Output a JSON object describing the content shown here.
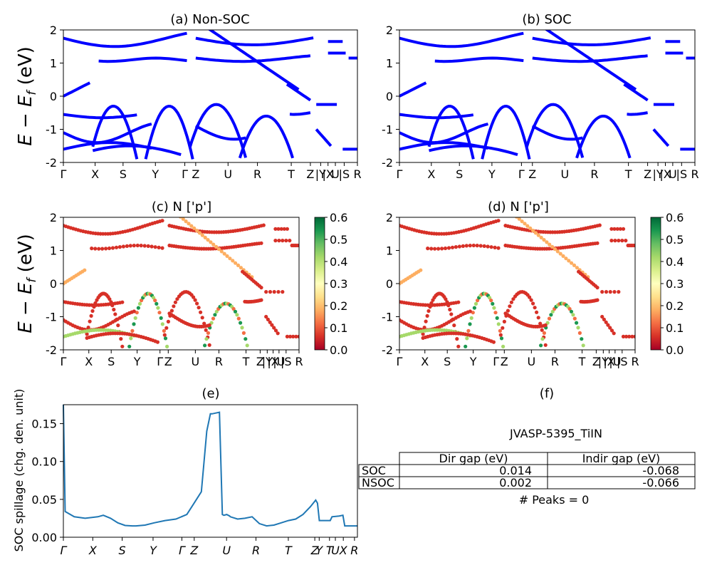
{
  "colors": {
    "band": "#0000ff",
    "spillage": "#1f77b4"
  },
  "axes_common": {
    "ylabel": "E − E_f (eV)",
    "yticks": [
      2,
      1,
      0,
      -1,
      -2
    ],
    "kpath_labels": [
      "Γ",
      "X",
      "S",
      "Y",
      "Γ",
      "Z",
      "U",
      "R",
      "T",
      "Z",
      "|Y",
      "|X",
      "U",
      "|S",
      "R"
    ],
    "kpath_labels_small": [
      "Γ",
      "X",
      "S",
      "Y",
      "Γ",
      "Z",
      "U",
      "R",
      "T",
      "Z",
      "|Y",
      "|X",
      "|U",
      "|S",
      "R"
    ],
    "colorbar_ticks": [
      "0.6",
      "0.5",
      "0.4",
      "0.3",
      "0.2",
      "0.1",
      "0.0"
    ]
  },
  "chart_data": [
    {
      "panel": "a",
      "type": "line",
      "title": "(a) Non-SOC",
      "ylim": [
        -2,
        2
      ],
      "series_color": "#0000ff"
    },
    {
      "panel": "b",
      "type": "line",
      "title": "(b) SOC",
      "ylim": [
        -2,
        2
      ],
      "series_color": "#0000ff"
    },
    {
      "panel": "c",
      "type": "scatter",
      "title": "(c)  N ['p']",
      "ylim": [
        -2,
        2
      ],
      "colorbar": [
        0.0,
        0.6
      ],
      "colormap": "RdYlGn"
    },
    {
      "panel": "d",
      "type": "scatter",
      "title": "(d) N ['p']",
      "ylim": [
        -2,
        2
      ],
      "colorbar": [
        0.0,
        0.6
      ],
      "colormap": "RdYlGn"
    },
    {
      "panel": "e",
      "type": "line",
      "title": "(e)",
      "ylabel": "SOC spillage (chg. den. unit)",
      "ylim": [
        0,
        0.175
      ],
      "yticks": [
        "0.15",
        "0.10",
        "0.05",
        "0.00"
      ],
      "xticks": [
        "Γ",
        "X",
        "S",
        "Y",
        "Γ",
        "Z",
        "U",
        "R",
        "T",
        "Z",
        "Y",
        "T",
        "U",
        "X",
        "S",
        "R"
      ],
      "x": [
        0,
        0.05,
        0.3,
        0.6,
        0.95,
        1.1,
        1.3,
        1.5,
        1.7,
        1.9,
        2.0,
        2.25,
        2.5,
        2.8,
        3.1,
        3.4,
        3.6,
        3.8,
        3.95,
        4.05,
        4.1,
        4.2,
        4.3,
        4.38,
        4.42,
        4.5,
        4.58,
        4.6,
        4.8,
        5.0,
        5.2,
        5.4,
        5.6,
        5.8,
        6.0,
        6.2,
        6.4,
        6.6,
        6.8,
        6.95,
        7.0,
        7.05,
        7.35,
        7.4,
        7.6,
        7.7,
        7.75,
        8.1
      ],
      "y": [
        0.175,
        0.034,
        0.027,
        0.025,
        0.027,
        0.029,
        0.025,
        0.019,
        0.0155,
        0.015,
        0.015,
        0.016,
        0.019,
        0.022,
        0.024,
        0.03,
        0.045,
        0.06,
        0.14,
        0.163,
        0.163,
        0.164,
        0.165,
        0.03,
        0.029,
        0.03,
        0.028,
        0.027,
        0.024,
        0.025,
        0.027,
        0.018,
        0.015,
        0.016,
        0.019,
        0.022,
        0.024,
        0.03,
        0.04,
        0.049,
        0.045,
        0.022,
        0.022,
        0.027,
        0.028,
        0.029,
        0.015,
        0.015
      ]
    }
  ],
  "panel_f": {
    "title": "(f)",
    "material": "JVASP-5395_TiIN",
    "headers": [
      "Dir gap (eV)",
      "Indir gap (eV)"
    ],
    "rows": [
      {
        "label": "SOC",
        "dir": "0.014",
        "indir": "-0.068"
      },
      {
        "label": "NSOC",
        "dir": "0.002",
        "indir": "-0.066"
      }
    ],
    "peaks": "# Peaks = 0"
  }
}
